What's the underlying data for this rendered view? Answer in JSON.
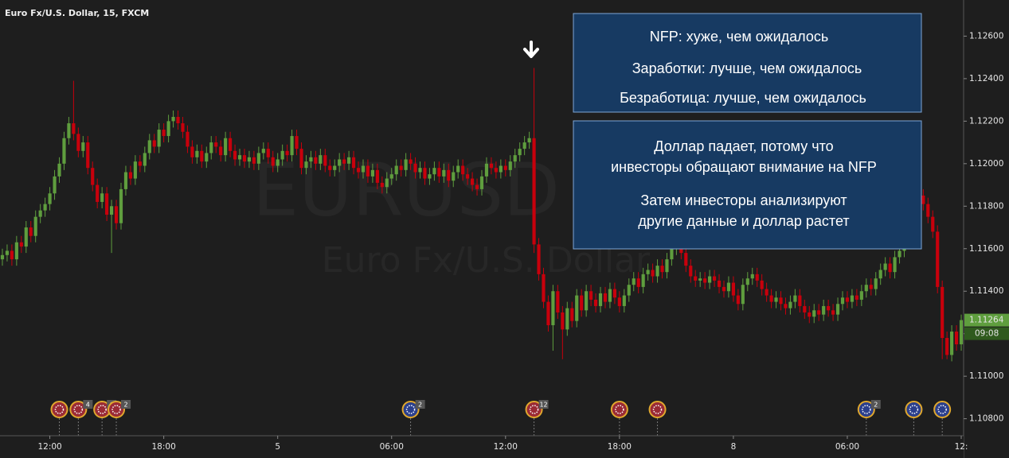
{
  "chart_data": {
    "type": "candlestick",
    "title": "Euro Fx/U.S. Dollar, 15, FXCM",
    "watermark": "EURUSD",
    "watermark_subtitle": "Euro Fx/U.S. Dollar",
    "annotations": [
      {
        "lines": [
          "NFP: хуже, чем ожидалось",
          "Заработки: лучше, чем ожидалось",
          "Безработица: лучше, чем ожидалось"
        ]
      },
      {
        "lines": [
          "Доллар падает, потому что",
          "инвесторы обращают внимание  на NFP",
          "Затем инвесторы анализируют",
          "другие данные и доллар растет"
        ]
      }
    ],
    "up_color": "#5f9e3e",
    "down_color": "#c8000c",
    "xlim": [
      -0.5,
      202.5
    ],
    "xticks": [
      {
        "value": 10,
        "label": "12:00"
      },
      {
        "value": 34,
        "label": "18:00"
      },
      {
        "value": 58,
        "label": "5"
      },
      {
        "value": 82,
        "label": "06:00"
      },
      {
        "value": 106,
        "label": "12:00"
      },
      {
        "value": 130,
        "label": "18:00"
      },
      {
        "value": 154,
        "label": "8"
      },
      {
        "value": 178,
        "label": "06:00"
      },
      {
        "value": 202,
        "label": "12:"
      }
    ],
    "ylim": [
      1.1072,
      1.1277
    ],
    "yticks": [
      {
        "value": 1.126,
        "label": "1.12600"
      },
      {
        "value": 1.124,
        "label": "1.12400"
      },
      {
        "value": 1.122,
        "label": "1.12200"
      },
      {
        "value": 1.12,
        "label": "1.12000"
      },
      {
        "value": 1.118,
        "label": "1.11800"
      },
      {
        "value": 1.116,
        "label": "1.11600"
      },
      {
        "value": 1.114,
        "label": "1.11400"
      },
      {
        "value": 1.112,
        "label": "1.11200"
      },
      {
        "value": 1.11,
        "label": "1.11000"
      },
      {
        "value": 1.108,
        "label": "1.10800"
      }
    ],
    "current_price": 1.11264,
    "countdown": "09:08",
    "open": [
      1.1155,
      1.1157,
      1.1159,
      1.1155,
      1.1163,
      1.1161,
      1.117,
      1.1166,
      1.1175,
      1.1178,
      1.1181,
      1.1186,
      1.1194,
      1.12,
      1.1212,
      1.1219,
      1.1214,
      1.1206,
      1.121,
      1.1198,
      1.119,
      1.1182,
      1.1186,
      1.1176,
      1.118,
      1.1172,
      1.1188,
      1.1196,
      1.1193,
      1.1201,
      1.1199,
      1.1205,
      1.1211,
      1.1208,
      1.1216,
      1.1213,
      1.122,
      1.1222,
      1.1219,
      1.1215,
      1.1208,
      1.1203,
      1.1206,
      1.1201,
      1.1205,
      1.121,
      1.1208,
      1.1204,
      1.1212,
      1.1206,
      1.1202,
      1.1204,
      1.1201,
      1.1203,
      1.12,
      1.1205,
      1.1207,
      1.1203,
      1.1199,
      1.1202,
      1.1206,
      1.1204,
      1.1213,
      1.1207,
      1.1198,
      1.1201,
      1.1203,
      1.12,
      1.1204,
      1.1199,
      1.1197,
      1.1199,
      1.1202,
      1.12,
      1.1203,
      1.1198,
      1.1196,
      1.1199,
      1.1194,
      1.1197,
      1.1191,
      1.1189,
      1.1193,
      1.1195,
      1.1199,
      1.1197,
      1.1202,
      1.12,
      1.1196,
      1.1198,
      1.1193,
      1.1195,
      1.1198,
      1.1194,
      1.1197,
      1.1192,
      1.1196,
      1.1199,
      1.1195,
      1.1193,
      1.119,
      1.1188,
      1.1194,
      1.12,
      1.1198,
      1.1196,
      1.1199,
      1.1197,
      1.1201,
      1.1204,
      1.1207,
      1.121,
      1.1212,
      1.1162,
      1.1148,
      1.1135,
      1.1124,
      1.114,
      1.113,
      1.1122,
      1.1132,
      1.1126,
      1.1138,
      1.1131,
      1.114,
      1.1136,
      1.1133,
      1.1139,
      1.1135,
      1.1141,
      1.1137,
      1.1133,
      1.1138,
      1.1143,
      1.1146,
      1.1142,
      1.1148,
      1.115,
      1.1147,
      1.1152,
      1.1149,
      1.1155,
      1.116,
      1.1163,
      1.1158,
      1.1152,
      1.1147,
      1.1145,
      1.1146,
      1.1144,
      1.1147,
      1.1145,
      1.1142,
      1.114,
      1.1144,
      1.1138,
      1.1134,
      1.1143,
      1.1146,
      1.1148,
      1.1145,
      1.1141,
      1.1138,
      1.1135,
      1.1137,
      1.1134,
      1.1132,
      1.1135,
      1.1138,
      1.1133,
      1.113,
      1.1128,
      1.1131,
      1.1129,
      1.1133,
      1.1131,
      1.1129,
      1.1134,
      1.1137,
      1.1135,
      1.1138,
      1.1136,
      1.114,
      1.1143,
      1.1141,
      1.1146,
      1.115,
      1.1153,
      1.1149,
      1.1156,
      1.1159,
      1.1165,
      1.1172,
      1.1178,
      1.1185,
      1.1181,
      1.1175,
      1.1168,
      1.1142,
      1.1118,
      1.111,
      1.1121,
      1.1115
    ],
    "high": [
      1.116,
      1.1162,
      1.1162,
      1.1166,
      1.1166,
      1.1173,
      1.1173,
      1.1178,
      1.1181,
      1.1184,
      1.1189,
      1.1197,
      1.1203,
      1.1215,
      1.1222,
      1.1239,
      1.1217,
      1.1213,
      1.1213,
      1.1201,
      1.1193,
      1.1189,
      1.1189,
      1.1183,
      1.1183,
      1.1191,
      1.1199,
      1.1199,
      1.1204,
      1.1204,
      1.1208,
      1.1214,
      1.1214,
      1.1219,
      1.1219,
      1.1223,
      1.1225,
      1.1225,
      1.1222,
      1.1218,
      1.1211,
      1.1209,
      1.1209,
      1.1208,
      1.1213,
      1.1213,
      1.1211,
      1.1215,
      1.1215,
      1.1209,
      1.1207,
      1.1207,
      1.1206,
      1.1206,
      1.1208,
      1.121,
      1.121,
      1.1206,
      1.1205,
      1.1209,
      1.1209,
      1.1216,
      1.1216,
      1.121,
      1.1204,
      1.1206,
      1.1206,
      1.1207,
      1.1207,
      1.1202,
      1.1202,
      1.1205,
      1.1205,
      1.1206,
      1.1206,
      1.1201,
      1.1202,
      1.1202,
      1.12,
      1.12,
      1.1194,
      1.1196,
      1.1198,
      1.1202,
      1.1202,
      1.1205,
      1.1205,
      1.1203,
      1.1201,
      1.1201,
      1.1198,
      1.1201,
      1.1201,
      1.12,
      1.12,
      1.1199,
      1.1202,
      1.1202,
      1.1198,
      1.1196,
      1.1193,
      1.1197,
      1.1203,
      1.1203,
      1.1201,
      1.1202,
      1.1202,
      1.1204,
      1.1207,
      1.121,
      1.1213,
      1.1215,
      1.1245,
      1.1165,
      1.1151,
      1.1138,
      1.1143,
      1.1143,
      1.1133,
      1.1135,
      1.1135,
      1.1141,
      1.1141,
      1.1143,
      1.1143,
      1.1139,
      1.1142,
      1.1142,
      1.1144,
      1.1144,
      1.114,
      1.1141,
      1.1146,
      1.1149,
      1.1149,
      1.1151,
      1.1153,
      1.1153,
      1.1155,
      1.1155,
      1.1158,
      1.1163,
      1.1166,
      1.1166,
      1.1161,
      1.1155,
      1.115,
      1.1149,
      1.1149,
      1.115,
      1.115,
      1.1148,
      1.1145,
      1.1147,
      1.1147,
      1.1141,
      1.1146,
      1.1149,
      1.1151,
      1.1151,
      1.1148,
      1.1144,
      1.1141,
      1.114,
      1.114,
      1.1137,
      1.1138,
      1.1141,
      1.1141,
      1.1136,
      1.1133,
      1.1134,
      1.1134,
      1.1136,
      1.1136,
      1.1134,
      1.1137,
      1.114,
      1.114,
      1.1141,
      1.1141,
      1.1143,
      1.1146,
      1.1146,
      1.1149,
      1.1153,
      1.1156,
      1.1156,
      1.1159,
      1.1162,
      1.1168,
      1.1175,
      1.1181,
      1.1188,
      1.1188,
      1.1184,
      1.1178,
      1.1171,
      1.1145,
      1.1121,
      1.1124,
      1.1124,
      1.1129
    ],
    "low": [
      1.1152,
      1.1154,
      1.1152,
      1.1152,
      1.1158,
      1.1158,
      1.1163,
      1.1163,
      1.1172,
      1.1175,
      1.1178,
      1.1183,
      1.1191,
      1.1197,
      1.1209,
      1.1211,
      1.1203,
      1.1203,
      1.1195,
      1.1187,
      1.1179,
      1.1179,
      1.1173,
      1.1158,
      1.1169,
      1.1169,
      1.1185,
      1.119,
      1.119,
      1.1196,
      1.1196,
      1.1202,
      1.1205,
      1.1205,
      1.121,
      1.121,
      1.1217,
      1.1216,
      1.1212,
      1.1205,
      1.12,
      1.12,
      1.1198,
      1.1198,
      1.1202,
      1.1205,
      1.1201,
      1.1201,
      1.1203,
      1.1199,
      1.1199,
      1.1198,
      1.1198,
      1.1197,
      1.1197,
      1.1202,
      1.12,
      1.1196,
      1.1196,
      1.1199,
      1.1201,
      1.1201,
      1.1204,
      1.1195,
      1.1195,
      1.1198,
      1.1197,
      1.1197,
      1.1196,
      1.1194,
      1.1194,
      1.1196,
      1.1197,
      1.1197,
      1.1195,
      1.1193,
      1.1193,
      1.1191,
      1.1191,
      1.1188,
      1.1186,
      1.1186,
      1.119,
      1.1192,
      1.1194,
      1.1194,
      1.1197,
      1.1193,
      1.1193,
      1.119,
      1.119,
      1.1192,
      1.1191,
      1.1191,
      1.1189,
      1.1189,
      1.1193,
      1.1192,
      1.119,
      1.1187,
      1.1185,
      1.1185,
      1.1191,
      1.1195,
      1.1193,
      1.1193,
      1.1194,
      1.1194,
      1.1198,
      1.1201,
      1.1204,
      1.1207,
      1.1158,
      1.1145,
      1.1132,
      1.1121,
      1.1112,
      1.1127,
      1.1108,
      1.1119,
      1.1123,
      1.1123,
      1.1128,
      1.1128,
      1.1133,
      1.113,
      1.113,
      1.1132,
      1.1132,
      1.1134,
      1.113,
      1.113,
      1.1135,
      1.114,
      1.1139,
      1.1139,
      1.1145,
      1.1144,
      1.1144,
      1.1146,
      1.1146,
      1.1152,
      1.1157,
      1.1155,
      1.1149,
      1.1144,
      1.1142,
      1.1142,
      1.1141,
      1.1141,
      1.1142,
      1.1139,
      1.1137,
      1.1137,
      1.1135,
      1.1131,
      1.1131,
      1.114,
      1.1143,
      1.1142,
      1.1138,
      1.1135,
      1.1132,
      1.1132,
      1.1131,
      1.1129,
      1.1129,
      1.1132,
      1.113,
      1.1127,
      1.1125,
      1.1125,
      1.1126,
      1.1126,
      1.1128,
      1.1126,
      1.1126,
      1.1131,
      1.1132,
      1.1132,
      1.1133,
      1.1133,
      1.1137,
      1.1138,
      1.1138,
      1.1143,
      1.1147,
      1.1146,
      1.1146,
      1.1153,
      1.1156,
      1.1162,
      1.1169,
      1.1175,
      1.1178,
      1.1172,
      1.1165,
      1.1139,
      1.1108,
      1.1108,
      1.1107,
      1.1112,
      1.1112
    ],
    "close": [
      1.1157,
      1.1159,
      1.1155,
      1.1163,
      1.1161,
      1.117,
      1.1166,
      1.1175,
      1.1178,
      1.1181,
      1.1186,
      1.1194,
      1.12,
      1.1212,
      1.1219,
      1.1214,
      1.1206,
      1.121,
      1.1198,
      1.119,
      1.1182,
      1.1186,
      1.1176,
      1.118,
      1.1172,
      1.1188,
      1.1196,
      1.1193,
      1.1201,
      1.1199,
      1.1205,
      1.1211,
      1.1208,
      1.1216,
      1.1213,
      1.122,
      1.1222,
      1.1219,
      1.1215,
      1.1208,
      1.1203,
      1.1206,
      1.1201,
      1.1205,
      1.121,
      1.1208,
      1.1204,
      1.1212,
      1.1206,
      1.1202,
      1.1204,
      1.1201,
      1.1203,
      1.12,
      1.1205,
      1.1207,
      1.1203,
      1.1199,
      1.1202,
      1.1206,
      1.1204,
      1.1213,
      1.1207,
      1.1198,
      1.1201,
      1.1203,
      1.12,
      1.1204,
      1.1199,
      1.1197,
      1.1199,
      1.1202,
      1.12,
      1.1203,
      1.1198,
      1.1196,
      1.1199,
      1.1194,
      1.1197,
      1.1191,
      1.1189,
      1.1193,
      1.1195,
      1.1199,
      1.1197,
      1.1202,
      1.12,
      1.1196,
      1.1198,
      1.1193,
      1.1195,
      1.1198,
      1.1194,
      1.1197,
      1.1192,
      1.1196,
      1.1199,
      1.1195,
      1.1193,
      1.119,
      1.1188,
      1.1194,
      1.12,
      1.1198,
      1.1196,
      1.1199,
      1.1197,
      1.1201,
      1.1204,
      1.1207,
      1.121,
      1.1212,
      1.1162,
      1.1148,
      1.1135,
      1.1124,
      1.114,
      1.113,
      1.1122,
      1.1132,
      1.1126,
      1.1138,
      1.1131,
      1.114,
      1.1136,
      1.1133,
      1.1139,
      1.1135,
      1.1141,
      1.1137,
      1.1133,
      1.1138,
      1.1143,
      1.1146,
      1.1142,
      1.1148,
      1.115,
      1.1147,
      1.1152,
      1.1149,
      1.1155,
      1.116,
      1.1163,
      1.1158,
      1.1152,
      1.1147,
      1.1145,
      1.1146,
      1.1144,
      1.1147,
      1.1145,
      1.1142,
      1.114,
      1.1144,
      1.1138,
      1.1134,
      1.1143,
      1.1146,
      1.1148,
      1.1145,
      1.1141,
      1.1138,
      1.1135,
      1.1137,
      1.1134,
      1.1132,
      1.1135,
      1.1138,
      1.1133,
      1.113,
      1.1128,
      1.1131,
      1.1129,
      1.1133,
      1.1131,
      1.1129,
      1.1134,
      1.1137,
      1.1135,
      1.1138,
      1.1136,
      1.114,
      1.1143,
      1.1141,
      1.1146,
      1.115,
      1.1153,
      1.1149,
      1.1156,
      1.1159,
      1.1165,
      1.1172,
      1.1178,
      1.1185,
      1.1181,
      1.1175,
      1.1168,
      1.1142,
      1.1118,
      1.111,
      1.1121,
      1.1115,
      1.11264
    ],
    "events": [
      {
        "x": 12,
        "color": "#9a2a35",
        "count": null
      },
      {
        "x": 16,
        "color": "#9a2a35",
        "count": 4
      },
      {
        "x": 21,
        "color": "#9a2a35",
        "count": 6
      },
      {
        "x": 24,
        "color": "#9a2a35",
        "count": 2
      },
      {
        "x": 86,
        "color": "#2b3f8c",
        "count": 2
      },
      {
        "x": 112,
        "color": "#9a2a35",
        "count": 12
      },
      {
        "x": 130,
        "color": "#9a2a35",
        "count": null
      },
      {
        "x": 138,
        "color": "#9a2a35",
        "count": null
      },
      {
        "x": 182,
        "color": "#2b3f8c",
        "count": 2
      },
      {
        "x": 192,
        "color": "#2b3f8c",
        "count": null
      },
      {
        "x": 198,
        "color": "#2b3f8c",
        "count": null
      }
    ]
  }
}
